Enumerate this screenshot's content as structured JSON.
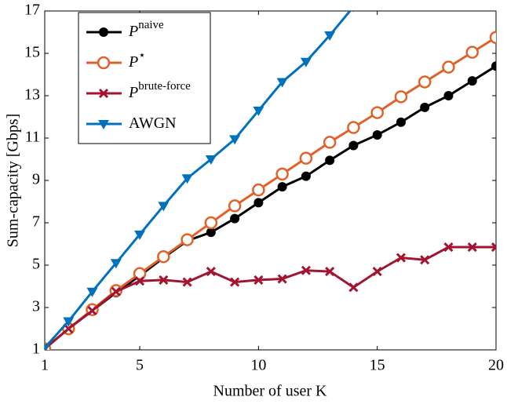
{
  "chart_data": {
    "type": "line",
    "xlabel": "Number of user K",
    "ylabel": "Sum-capacity [Gbps]",
    "x": [
      1,
      2,
      3,
      4,
      5,
      6,
      7,
      8,
      9,
      10,
      11,
      12,
      13,
      14,
      15,
      16,
      17,
      18,
      19,
      20
    ],
    "xlim": [
      1,
      20
    ],
    "xticks": [
      1,
      5,
      10,
      15,
      20
    ],
    "ylim": [
      1,
      17
    ],
    "yticks": [
      1,
      3,
      5,
      7,
      9,
      11,
      13,
      15,
      17
    ],
    "legend": "upper left",
    "series": [
      {
        "name": "P",
        "name_sup": "naive",
        "color": "#000000",
        "marker": "circle",
        "values": [
          1.05,
          2.0,
          2.85,
          3.7,
          4.5,
          5.35,
          6.15,
          6.55,
          7.2,
          7.95,
          8.7,
          9.2,
          9.95,
          10.65,
          11.15,
          11.75,
          12.45,
          13.0,
          13.7,
          14.4
        ]
      },
      {
        "name": "P",
        "name_sup": "⋆",
        "color": "#e0622a",
        "marker": "open-circle",
        "values": [
          1.05,
          2.0,
          2.9,
          3.8,
          4.6,
          5.4,
          6.2,
          7.0,
          7.8,
          8.55,
          9.3,
          10.05,
          10.8,
          11.5,
          12.2,
          12.95,
          13.65,
          14.35,
          15.05,
          15.75
        ]
      },
      {
        "name": "P",
        "name_sup": "brute-force",
        "color": "#a2142f",
        "marker": "x",
        "values": [
          1.05,
          2.0,
          2.85,
          3.75,
          4.25,
          4.3,
          4.2,
          4.7,
          4.2,
          4.3,
          4.35,
          4.75,
          4.7,
          3.95,
          4.7,
          5.35,
          5.25,
          5.85,
          5.85,
          5.85
        ]
      },
      {
        "name": "AWGN",
        "color": "#0072bd",
        "marker": "triangle-down",
        "values": [
          1.1,
          2.35,
          3.75,
          5.1,
          6.45,
          7.8,
          9.1,
          10.0,
          10.95,
          12.3,
          13.65,
          14.6,
          15.85,
          17.2,
          null,
          null,
          null,
          null,
          null,
          null
        ]
      }
    ]
  }
}
